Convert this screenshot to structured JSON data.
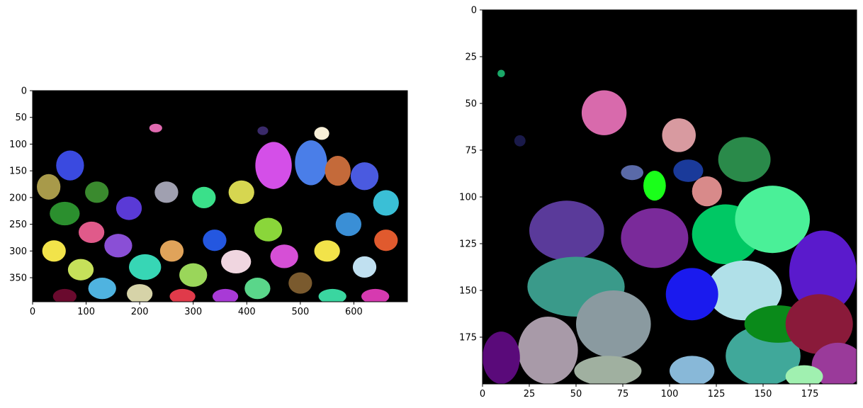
{
  "chart_data": [
    {
      "type": "heatmap",
      "title": "",
      "xlabel": "",
      "ylabel": "",
      "xlim": [
        0,
        700
      ],
      "ylim": [
        395,
        0
      ],
      "xticks": [
        0,
        100,
        200,
        300,
        400,
        500,
        600
      ],
      "yticks": [
        0,
        50,
        100,
        150,
        200,
        250,
        300,
        350
      ],
      "background": "#000000",
      "regions": [
        {
          "x": 60,
          "y": 230,
          "rx": 28,
          "ry": 22,
          "color": "#2b8f2e"
        },
        {
          "x": 110,
          "y": 265,
          "rx": 24,
          "ry": 20,
          "color": "#e05a8a"
        },
        {
          "x": 160,
          "y": 290,
          "rx": 26,
          "ry": 22,
          "color": "#8a4fd6"
        },
        {
          "x": 210,
          "y": 330,
          "rx": 30,
          "ry": 24,
          "color": "#37d6b5"
        },
        {
          "x": 90,
          "y": 335,
          "rx": 24,
          "ry": 20,
          "color": "#c6e05a"
        },
        {
          "x": 40,
          "y": 300,
          "rx": 22,
          "ry": 20,
          "color": "#f2e34a"
        },
        {
          "x": 130,
          "y": 370,
          "rx": 26,
          "ry": 20,
          "color": "#4fb3e0"
        },
        {
          "x": 200,
          "y": 380,
          "rx": 24,
          "ry": 18,
          "color": "#d6d3a8"
        },
        {
          "x": 260,
          "y": 300,
          "rx": 22,
          "ry": 20,
          "color": "#e0a35a"
        },
        {
          "x": 300,
          "y": 345,
          "rx": 26,
          "ry": 22,
          "color": "#9ad65a"
        },
        {
          "x": 340,
          "y": 280,
          "rx": 22,
          "ry": 20,
          "color": "#2457e0"
        },
        {
          "x": 380,
          "y": 320,
          "rx": 28,
          "ry": 22,
          "color": "#f0d6e0"
        },
        {
          "x": 420,
          "y": 370,
          "rx": 24,
          "ry": 20,
          "color": "#5ad68a"
        },
        {
          "x": 440,
          "y": 260,
          "rx": 26,
          "ry": 22,
          "color": "#8ad63a"
        },
        {
          "x": 470,
          "y": 310,
          "rx": 26,
          "ry": 22,
          "color": "#d64fd6"
        },
        {
          "x": 500,
          "y": 360,
          "rx": 22,
          "ry": 20,
          "color": "#7a5a2e"
        },
        {
          "x": 550,
          "y": 300,
          "rx": 24,
          "ry": 20,
          "color": "#f2e34a"
        },
        {
          "x": 590,
          "y": 250,
          "rx": 24,
          "ry": 22,
          "color": "#3a8fd6"
        },
        {
          "x": 620,
          "y": 330,
          "rx": 22,
          "ry": 20,
          "color": "#c0e0f0"
        },
        {
          "x": 660,
          "y": 280,
          "rx": 22,
          "ry": 20,
          "color": "#e05a2e"
        },
        {
          "x": 450,
          "y": 140,
          "rx": 34,
          "ry": 44,
          "color": "#d44fe8"
        },
        {
          "x": 520,
          "y": 135,
          "rx": 30,
          "ry": 42,
          "color": "#4a7ee8"
        },
        {
          "x": 570,
          "y": 150,
          "rx": 24,
          "ry": 28,
          "color": "#c46a3a"
        },
        {
          "x": 620,
          "y": 160,
          "rx": 26,
          "ry": 26,
          "color": "#4a5ae0"
        },
        {
          "x": 660,
          "y": 210,
          "rx": 24,
          "ry": 24,
          "color": "#3abfd6"
        },
        {
          "x": 70,
          "y": 140,
          "rx": 26,
          "ry": 28,
          "color": "#3a4ae0"
        },
        {
          "x": 30,
          "y": 180,
          "rx": 22,
          "ry": 24,
          "color": "#a89a4a"
        },
        {
          "x": 120,
          "y": 190,
          "rx": 22,
          "ry": 20,
          "color": "#3a8a2e"
        },
        {
          "x": 180,
          "y": 220,
          "rx": 24,
          "ry": 22,
          "color": "#5a3ad6"
        },
        {
          "x": 250,
          "y": 190,
          "rx": 22,
          "ry": 20,
          "color": "#a0a0b0"
        },
        {
          "x": 320,
          "y": 200,
          "rx": 22,
          "ry": 20,
          "color": "#3ae08a"
        },
        {
          "x": 390,
          "y": 190,
          "rx": 24,
          "ry": 22,
          "color": "#d6d650"
        },
        {
          "x": 60,
          "y": 385,
          "rx": 22,
          "ry": 14,
          "color": "#6a0a2e"
        },
        {
          "x": 280,
          "y": 385,
          "rx": 24,
          "ry": 14,
          "color": "#e03a4a"
        },
        {
          "x": 360,
          "y": 385,
          "rx": 24,
          "ry": 14,
          "color": "#a83ad6"
        },
        {
          "x": 560,
          "y": 385,
          "rx": 26,
          "ry": 14,
          "color": "#3ad6a0"
        },
        {
          "x": 640,
          "y": 385,
          "rx": 26,
          "ry": 14,
          "color": "#d63ab0"
        },
        {
          "x": 540,
          "y": 80,
          "rx": 14,
          "ry": 12,
          "color": "#f8f0d8"
        },
        {
          "x": 430,
          "y": 75,
          "rx": 10,
          "ry": 8,
          "color": "#3a2a6a"
        },
        {
          "x": 230,
          "y": 70,
          "rx": 12,
          "ry": 8,
          "color": "#e06ab0"
        }
      ]
    },
    {
      "type": "heatmap",
      "title": "",
      "xlabel": "",
      "ylabel": "",
      "xlim": [
        0,
        200
      ],
      "ylim": [
        200,
        0
      ],
      "xticks": [
        0,
        25,
        50,
        75,
        100,
        125,
        150,
        175
      ],
      "yticks": [
        0,
        25,
        50,
        75,
        100,
        125,
        150,
        175
      ],
      "background": "#000000",
      "regions": [
        {
          "x": 65,
          "y": 55,
          "rx": 12,
          "ry": 12,
          "color": "#d86aac"
        },
        {
          "x": 105,
          "y": 67,
          "rx": 9,
          "ry": 9,
          "color": "#d89aa0"
        },
        {
          "x": 140,
          "y": 80,
          "rx": 14,
          "ry": 12,
          "color": "#2a8a4a"
        },
        {
          "x": 92,
          "y": 94,
          "rx": 6,
          "ry": 8,
          "color": "#1aff1a"
        },
        {
          "x": 110,
          "y": 86,
          "rx": 8,
          "ry": 6,
          "color": "#1a3a9a"
        },
        {
          "x": 120,
          "y": 97,
          "rx": 8,
          "ry": 8,
          "color": "#d88a8a"
        },
        {
          "x": 80,
          "y": 87,
          "rx": 6,
          "ry": 4,
          "color": "#5a6aa8"
        },
        {
          "x": 45,
          "y": 118,
          "rx": 20,
          "ry": 16,
          "color": "#5a3a9a"
        },
        {
          "x": 92,
          "y": 122,
          "rx": 18,
          "ry": 16,
          "color": "#7a2a9a"
        },
        {
          "x": 130,
          "y": 120,
          "rx": 18,
          "ry": 16,
          "color": "#00c864"
        },
        {
          "x": 155,
          "y": 112,
          "rx": 20,
          "ry": 18,
          "color": "#4af098"
        },
        {
          "x": 182,
          "y": 140,
          "rx": 18,
          "ry": 22,
          "color": "#5a1acc"
        },
        {
          "x": 140,
          "y": 150,
          "rx": 20,
          "ry": 16,
          "color": "#b0e0e8"
        },
        {
          "x": 112,
          "y": 152,
          "rx": 14,
          "ry": 14,
          "color": "#1a1aee"
        },
        {
          "x": 50,
          "y": 148,
          "rx": 26,
          "ry": 16,
          "color": "#3a9a8a"
        },
        {
          "x": 70,
          "y": 168,
          "rx": 20,
          "ry": 18,
          "color": "#8a9aa0"
        },
        {
          "x": 35,
          "y": 182,
          "rx": 16,
          "ry": 18,
          "color": "#a89aa8"
        },
        {
          "x": 10,
          "y": 186,
          "rx": 10,
          "ry": 14,
          "color": "#5a0a7a"
        },
        {
          "x": 67,
          "y": 193,
          "rx": 18,
          "ry": 8,
          "color": "#a0b0a0"
        },
        {
          "x": 112,
          "y": 193,
          "rx": 12,
          "ry": 8,
          "color": "#88b8d8"
        },
        {
          "x": 150,
          "y": 185,
          "rx": 20,
          "ry": 16,
          "color": "#40a89a"
        },
        {
          "x": 158,
          "y": 168,
          "rx": 18,
          "ry": 10,
          "color": "#0a8a1a"
        },
        {
          "x": 180,
          "y": 168,
          "rx": 18,
          "ry": 16,
          "color": "#8a1a3a"
        },
        {
          "x": 190,
          "y": 190,
          "rx": 14,
          "ry": 12,
          "color": "#9a3a9a"
        },
        {
          "x": 172,
          "y": 196,
          "rx": 10,
          "ry": 6,
          "color": "#a0f0b0"
        },
        {
          "x": 20,
          "y": 70,
          "rx": 3,
          "ry": 3,
          "color": "#1a1a4a"
        },
        {
          "x": 10,
          "y": 34,
          "rx": 2,
          "ry": 2,
          "color": "#1aa868"
        }
      ]
    }
  ]
}
